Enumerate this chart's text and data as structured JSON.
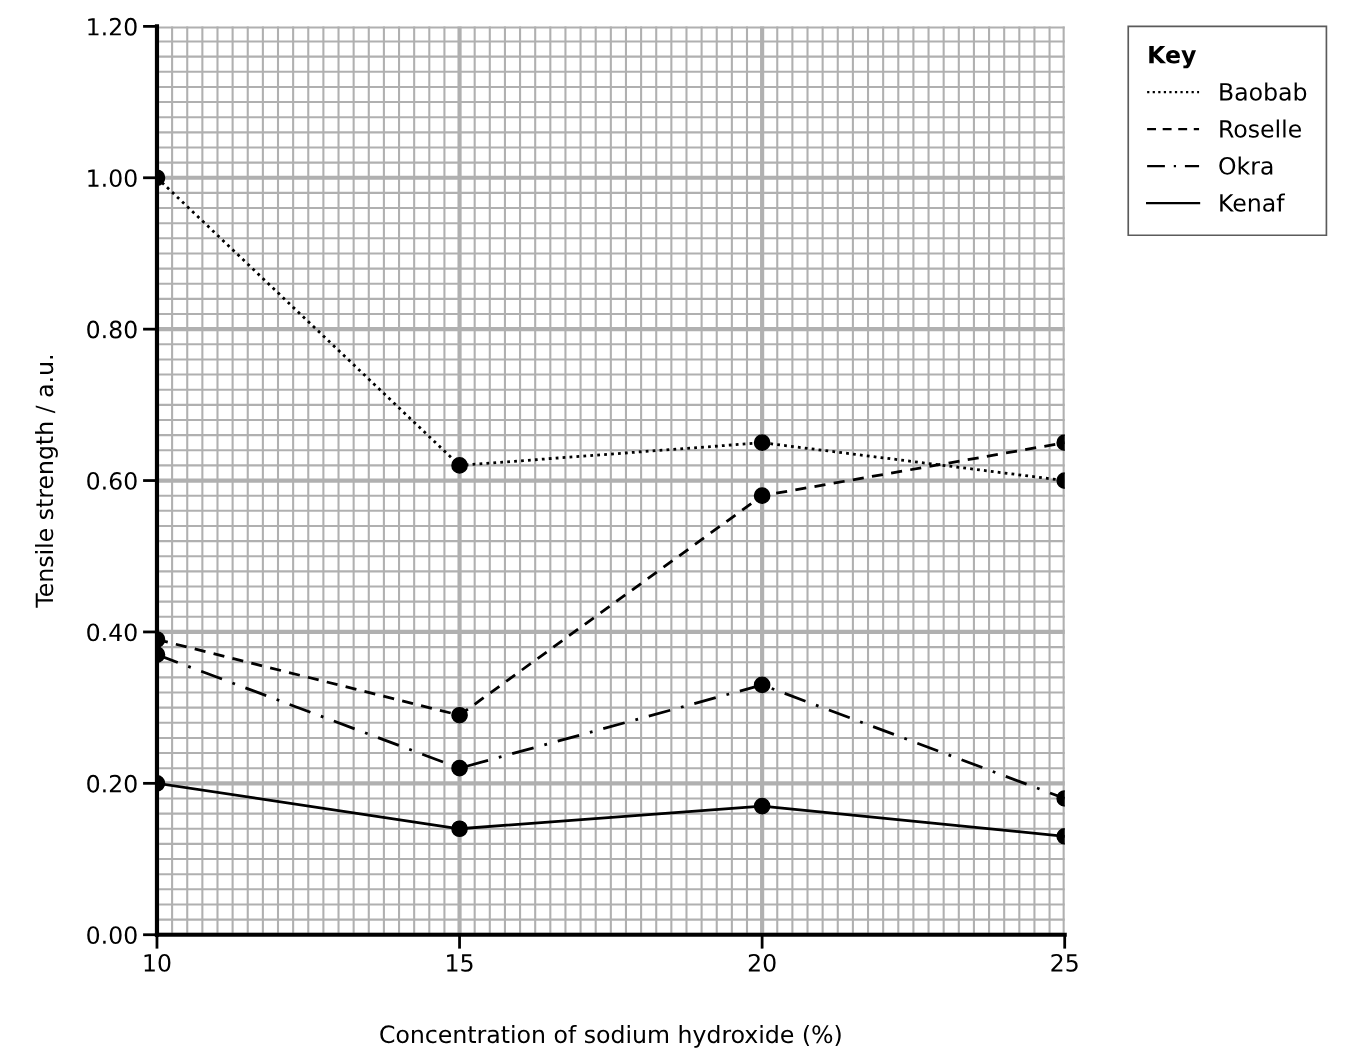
{
  "chart_data": {
    "type": "line",
    "xlabel": "Concentration of sodium hydroxide (%)",
    "ylabel": "Tensile strength / a.u.",
    "legend_title": "Key",
    "legend": "top right",
    "grid": true,
    "marker": "circle",
    "x": [
      10,
      15,
      20,
      25
    ],
    "xlim": [
      10,
      25
    ],
    "xticks": [
      10,
      15,
      20,
      25
    ],
    "ylim": [
      0,
      1.2
    ],
    "yticks": [
      {
        "value": 0,
        "label": "0.00"
      },
      {
        "value": 0.2,
        "label": "0.20"
      },
      {
        "value": 0.4,
        "label": "0.40"
      },
      {
        "value": 0.6,
        "label": "0.60"
      },
      {
        "value": 0.8,
        "label": "0.80"
      },
      {
        "value": 1.0,
        "label": "1.00"
      },
      {
        "value": 1.2,
        "label": "1.20"
      }
    ],
    "series": [
      {
        "name": "Baobab",
        "color": "#000000",
        "line_style": "dotted",
        "values": [
          1.0,
          0.62,
          0.65,
          0.6
        ]
      },
      {
        "name": "Roselle",
        "color": "#000000",
        "line_style": "dashed",
        "values": [
          0.39,
          0.29,
          0.58,
          0.65
        ]
      },
      {
        "name": "Okra",
        "color": "#000000",
        "line_style": "dashdot",
        "values": [
          0.37,
          0.22,
          0.33,
          0.18
        ]
      },
      {
        "name": "Kenaf",
        "color": "#000000",
        "line_style": "solid",
        "values": [
          0.2,
          0.14,
          0.17,
          0.13
        ]
      }
    ]
  }
}
